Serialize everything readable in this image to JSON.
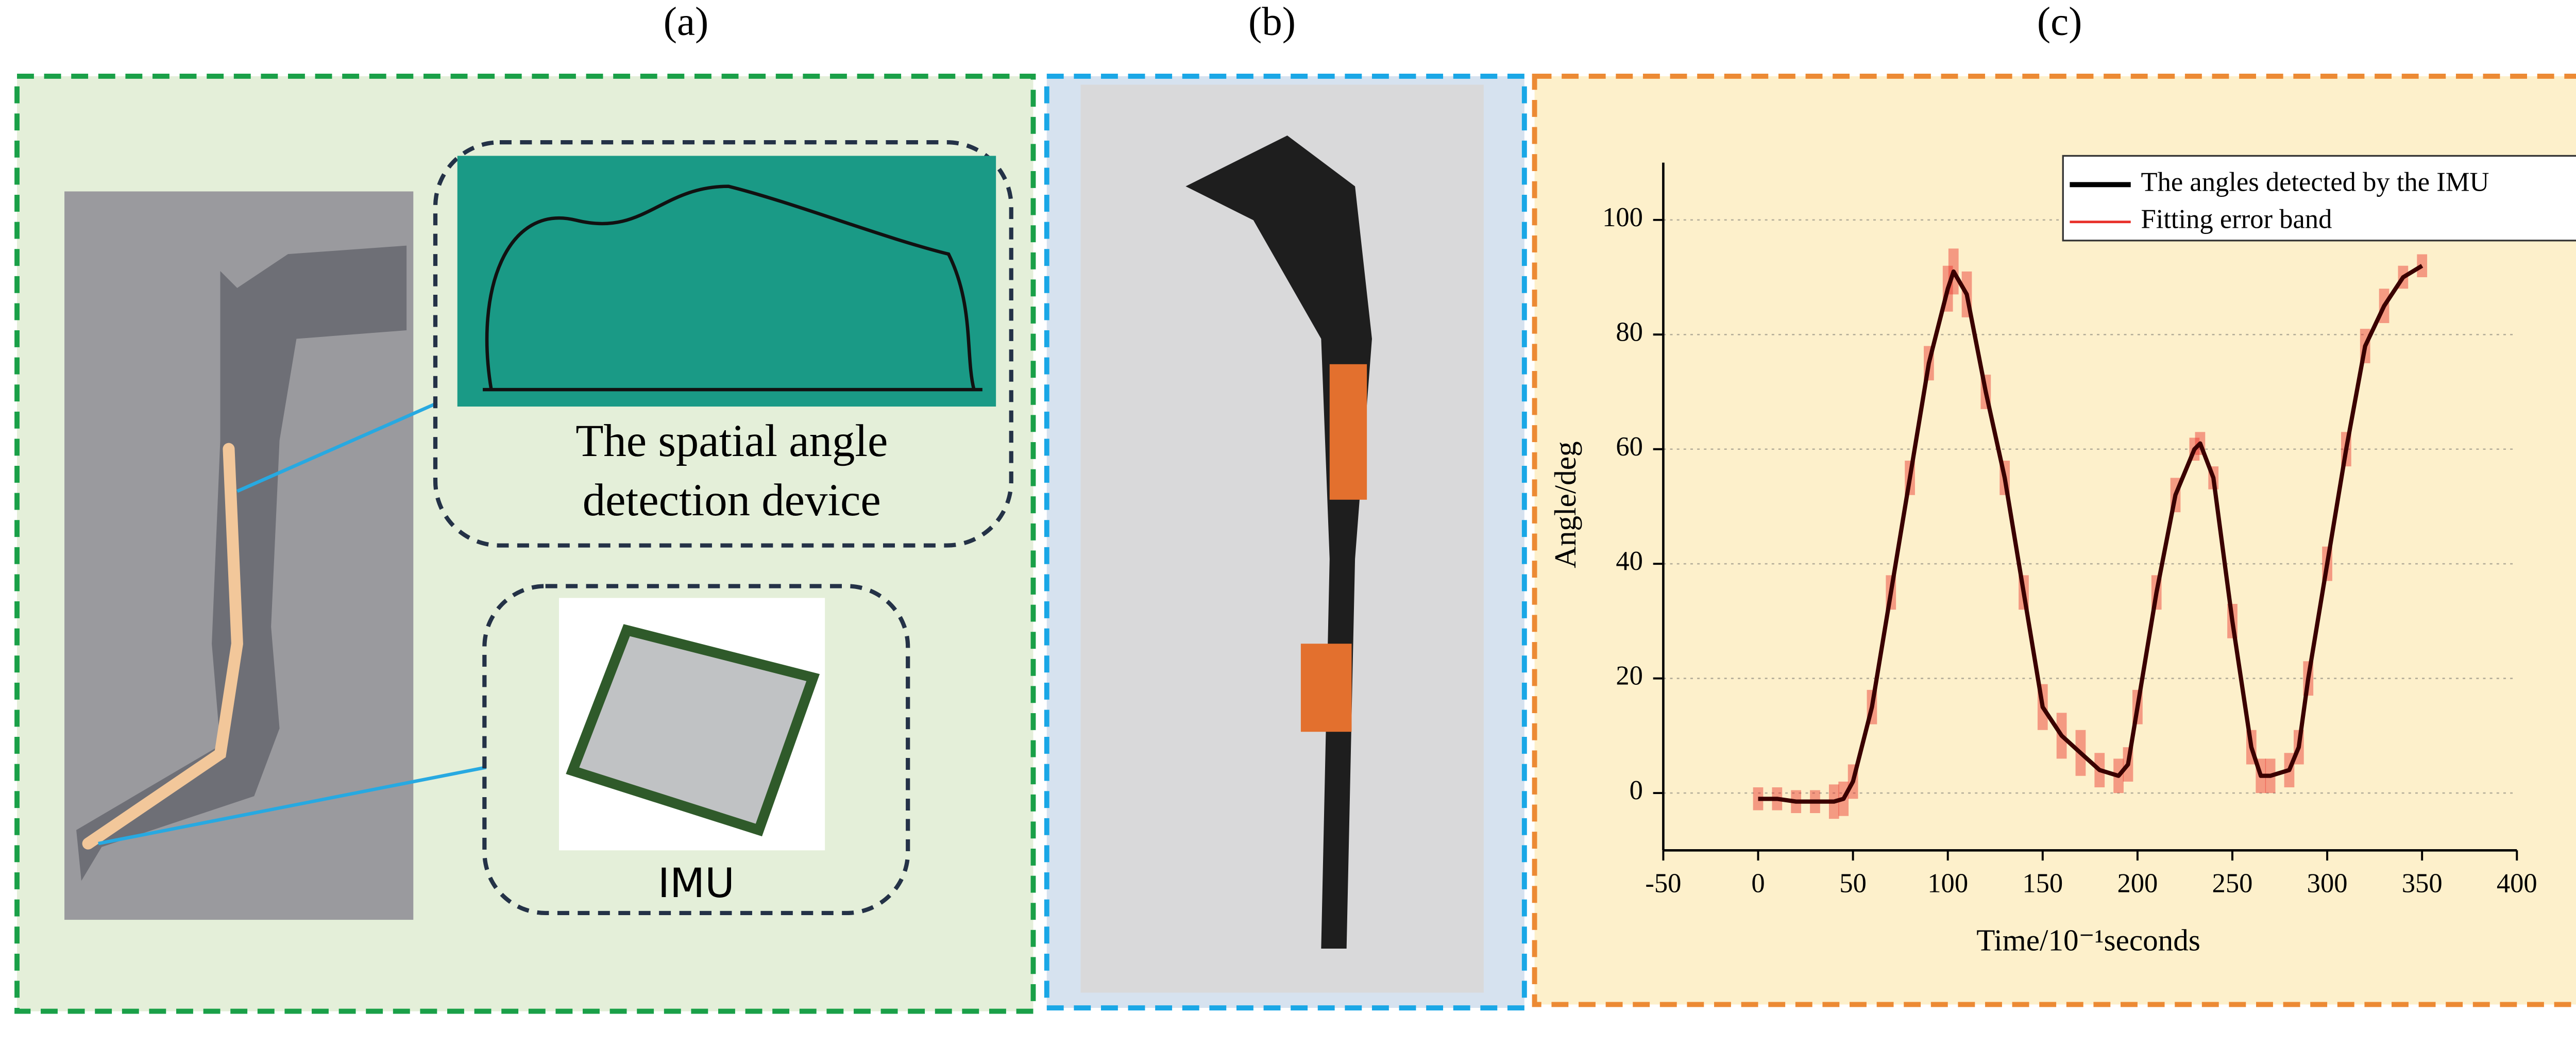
{
  "panels": {
    "a": {
      "label": "(a)",
      "device_label_1": "The spatial angle",
      "device_label_2": "detection device",
      "imu_label": "IMU"
    },
    "b": {
      "label": "(b)"
    }
  },
  "chart_data": {
    "type": "line",
    "label": "(c)",
    "x_label": "Time/10⁻¹seconds",
    "y_label": "Angle/deg",
    "x": [
      0,
      10,
      20,
      30,
      40,
      45,
      50,
      60,
      70,
      80,
      90,
      100,
      103,
      110,
      120,
      130,
      140,
      150,
      160,
      170,
      180,
      190,
      195,
      200,
      210,
      220,
      230,
      233,
      240,
      250,
      260,
      265,
      270,
      280,
      285,
      290,
      300,
      310,
      320,
      330,
      340,
      350
    ],
    "series": [
      {
        "name": "The angles detected by the IMU",
        "color": "#3a0000",
        "values": [
          -1,
          -1,
          -1.5,
          -1.5,
          -1.5,
          -1,
          2,
          15,
          35,
          55,
          75,
          88,
          91,
          87,
          70,
          55,
          35,
          15,
          10,
          7,
          4,
          3,
          5,
          15,
          35,
          52,
          60,
          61,
          55,
          30,
          8,
          3,
          3,
          4,
          8,
          20,
          40,
          60,
          78,
          85,
          90,
          92
        ]
      },
      {
        "name": "Fitting error band",
        "color": "#e8302a",
        "values": [
          -1,
          -1,
          -1.5,
          -1.5,
          -1.5,
          -1,
          2,
          15,
          35,
          55,
          75,
          88,
          91,
          87,
          70,
          55,
          35,
          15,
          10,
          7,
          4,
          3,
          5,
          15,
          35,
          52,
          60,
          61,
          55,
          30,
          8,
          3,
          3,
          4,
          8,
          20,
          40,
          60,
          78,
          85,
          90,
          92
        ],
        "errors": [
          2,
          2,
          2,
          2,
          3,
          3,
          3,
          3,
          3,
          3,
          3,
          4,
          4,
          4,
          3,
          3,
          3,
          4,
          4,
          4,
          3,
          3,
          3,
          3,
          3,
          3,
          2,
          2,
          2,
          3,
          3,
          3,
          3,
          3,
          3,
          3,
          3,
          3,
          3,
          3,
          2,
          2
        ]
      }
    ],
    "xlim": [
      -50,
      400
    ],
    "xticks": [
      -50,
      0,
      50,
      100,
      150,
      200,
      250,
      300,
      350,
      400
    ],
    "ylim": [
      -10,
      110
    ],
    "yticks": [
      0,
      20,
      40,
      60,
      80,
      100
    ],
    "grid": true
  }
}
